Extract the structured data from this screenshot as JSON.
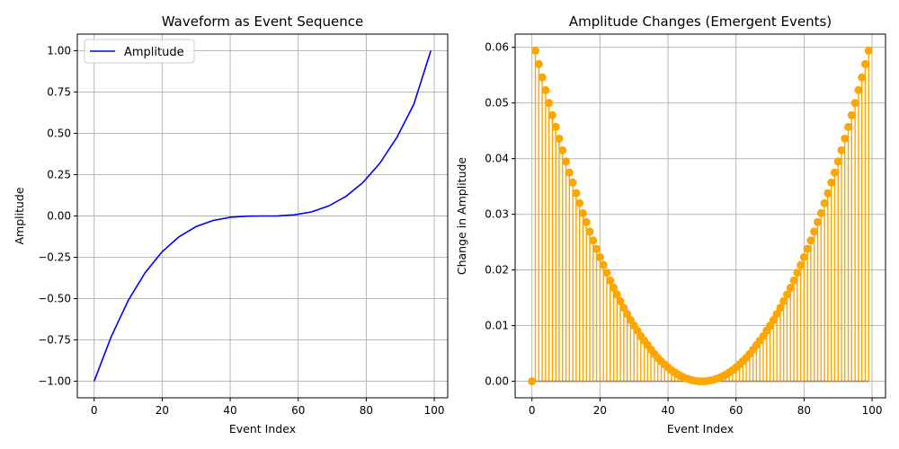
{
  "chart_data": [
    {
      "type": "line",
      "title": "Waveform as Event Sequence",
      "xlabel": "Event Index",
      "ylabel": "Amplitude",
      "xlim": [
        -4.95,
        103.95
      ],
      "ylim": [
        -1.1,
        1.1
      ],
      "xticks": [
        0,
        20,
        40,
        60,
        80,
        100
      ],
      "xtick_labels": [
        "0",
        "20",
        "40",
        "60",
        "80",
        "100"
      ],
      "yticks": [
        -1.0,
        -0.75,
        -0.5,
        -0.25,
        0.0,
        0.25,
        0.5,
        0.75,
        1.0
      ],
      "ytick_labels": [
        "−1.00",
        "−0.75",
        "−0.50",
        "−0.25",
        "0.00",
        "0.25",
        "0.50",
        "0.75",
        "1.00"
      ],
      "grid": true,
      "legend": {
        "position": "top-left",
        "entries": [
          "Amplitude"
        ]
      },
      "series": [
        {
          "name": "Amplitude",
          "color": "#0000ff",
          "x": [
            0,
            5,
            10,
            15,
            20,
            25,
            30,
            35,
            40,
            45,
            49.5,
            54,
            59,
            64,
            69,
            74,
            79,
            84,
            89,
            94,
            99
          ],
          "y": [
            -1.0,
            -0.731,
            -0.512,
            -0.343,
            -0.216,
            -0.125,
            -0.064,
            -0.027,
            -0.008,
            -0.001,
            0.0,
            0.0006,
            0.007,
            0.025,
            0.061,
            0.118,
            0.202,
            0.319,
            0.475,
            0.676,
            1.0
          ]
        }
      ]
    },
    {
      "type": "stem",
      "title": "Amplitude Changes (Emergent Events)",
      "xlabel": "Event Index",
      "ylabel": "Change in Amplitude",
      "xlim": [
        -4.95,
        103.95
      ],
      "ylim": [
        -0.00297,
        0.06237
      ],
      "xticks": [
        0,
        20,
        40,
        60,
        80,
        100
      ],
      "xtick_labels": [
        "0",
        "20",
        "40",
        "60",
        "80",
        "100"
      ],
      "yticks": [
        0.0,
        0.01,
        0.02,
        0.03,
        0.04,
        0.05,
        0.06
      ],
      "ytick_labels": [
        "0.00",
        "0.01",
        "0.02",
        "0.03",
        "0.04",
        "0.05",
        "0.06"
      ],
      "grid": true,
      "colors": {
        "markers": "#ffa500",
        "baseline": "#808080"
      },
      "series": [
        {
          "name": "",
          "x": [
            0,
            1,
            2,
            3,
            4,
            5,
            6,
            7,
            8,
            9,
            10,
            11,
            12,
            13,
            14,
            15,
            16,
            17,
            18,
            19,
            20,
            21,
            22,
            23,
            24,
            25,
            26,
            27,
            28,
            29,
            30,
            31,
            32,
            33,
            34,
            35,
            36,
            37,
            38,
            39,
            40,
            41,
            42,
            43,
            44,
            45,
            46,
            47,
            48,
            49,
            50,
            51,
            52,
            53,
            54,
            55,
            56,
            57,
            58,
            59,
            60,
            61,
            62,
            63,
            64,
            65,
            66,
            67,
            68,
            69,
            70,
            71,
            72,
            73,
            74,
            75,
            76,
            77,
            78,
            79,
            80,
            81,
            82,
            83,
            84,
            85,
            86,
            87,
            88,
            89,
            90,
            91,
            92,
            93,
            94,
            95,
            96,
            97,
            98,
            99
          ],
          "y": [
            0,
            0.0594,
            0.057,
            0.0546,
            0.0523,
            0.05,
            0.0478,
            0.0457,
            0.0436,
            0.0415,
            0.0395,
            0.0375,
            0.0357,
            0.0338,
            0.032,
            0.0302,
            0.0286,
            0.0269,
            0.0253,
            0.0238,
            0.0223,
            0.0209,
            0.0195,
            0.0181,
            0.0168,
            0.0156,
            0.0144,
            0.0132,
            0.0121,
            0.011,
            0.01,
            0.0091,
            0.0081,
            0.0073,
            0.0065,
            0.0057,
            0.0049,
            0.0042,
            0.0036,
            0.003,
            0.0025,
            0.002,
            0.0016,
            0.0012,
            0.0009,
            0.0006,
            0.0004,
            0.0002,
            0.0001,
            0.0,
            0.0,
            0.0,
            0.0001,
            0.0002,
            0.0004,
            0.0006,
            0.0009,
            0.0012,
            0.0016,
            0.002,
            0.0025,
            0.003,
            0.0036,
            0.0042,
            0.0049,
            0.0057,
            0.0065,
            0.0073,
            0.0081,
            0.0091,
            0.01,
            0.011,
            0.0121,
            0.0132,
            0.0144,
            0.0156,
            0.0168,
            0.0181,
            0.0195,
            0.0209,
            0.0223,
            0.0238,
            0.0253,
            0.0269,
            0.0286,
            0.0302,
            0.032,
            0.0338,
            0.0357,
            0.0375,
            0.0395,
            0.0415,
            0.0436,
            0.0457,
            0.0478,
            0.05,
            0.0523,
            0.0546,
            0.057,
            0.0594
          ]
        }
      ]
    }
  ]
}
